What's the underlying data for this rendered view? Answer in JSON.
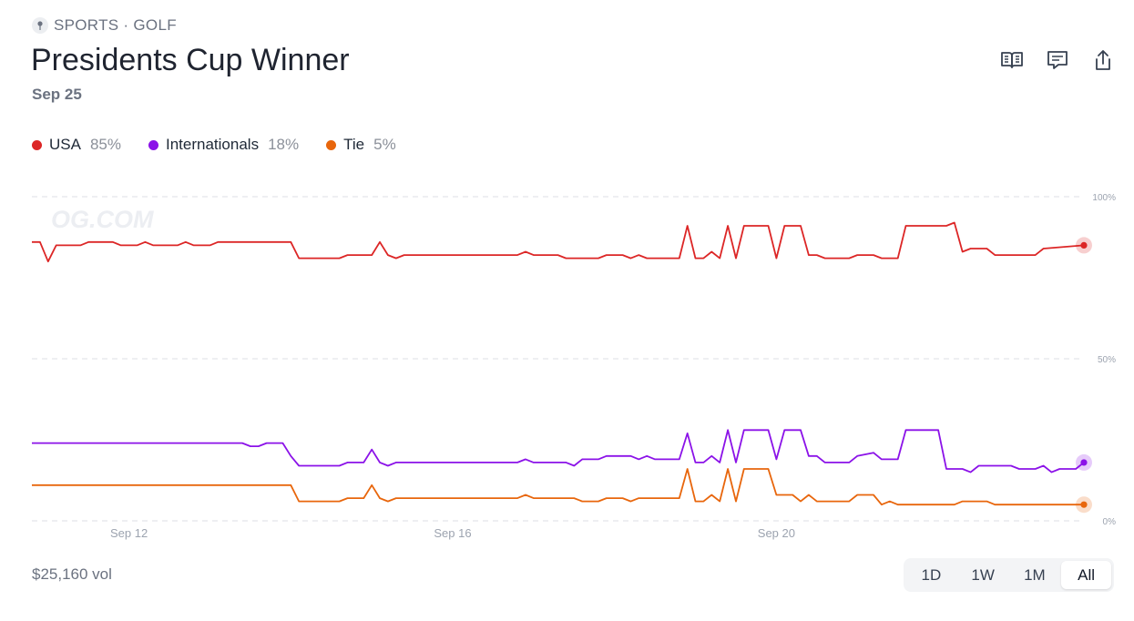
{
  "header": {
    "category": "SPORTS · GOLF",
    "title": "Presidents Cup Winner",
    "date": "Sep 25"
  },
  "actions": [
    {
      "icon": "book-icon"
    },
    {
      "icon": "comment-icon"
    },
    {
      "icon": "share-icon"
    }
  ],
  "legend": [
    {
      "name": "USA",
      "value": "85%",
      "color": "#dc2626"
    },
    {
      "name": "Internationals",
      "value": "18%",
      "color": "#8b12e8"
    },
    {
      "name": "Tie",
      "value": "5%",
      "color": "#e8660c"
    }
  ],
  "watermark": "OG.COM",
  "footer": {
    "volume": "$25,160 vol",
    "ranges": [
      "1D",
      "1W",
      "1M",
      "All"
    ],
    "active_range": "All"
  },
  "chart_data": {
    "type": "line",
    "x_ticks": [
      {
        "label": "Sep 12",
        "day": 12
      },
      {
        "label": "Sep 16",
        "day": 16
      },
      {
        "label": "Sep 20",
        "day": 20
      }
    ],
    "y_ticks": [
      {
        "label": "100%",
        "value": 100
      },
      {
        "label": "50%",
        "value": 50
      },
      {
        "label": "0%",
        "value": 0
      }
    ],
    "ylim": [
      0,
      100
    ],
    "xlim": [
      10.8,
      23.8
    ],
    "grid": true,
    "series": [
      {
        "name": "USA",
        "color": "#dc2626",
        "points": [
          [
            10.8,
            86
          ],
          [
            10.9,
            86
          ],
          [
            11.0,
            80
          ],
          [
            11.1,
            85
          ],
          [
            11.4,
            85
          ],
          [
            11.5,
            86
          ],
          [
            11.8,
            86
          ],
          [
            11.9,
            85
          ],
          [
            12.1,
            85
          ],
          [
            12.2,
            86
          ],
          [
            12.3,
            85
          ],
          [
            12.6,
            85
          ],
          [
            12.7,
            86
          ],
          [
            12.8,
            85
          ],
          [
            13.0,
            85
          ],
          [
            13.1,
            86
          ],
          [
            14.0,
            86
          ],
          [
            14.1,
            81
          ],
          [
            14.6,
            81
          ],
          [
            14.7,
            82
          ],
          [
            15.0,
            82
          ],
          [
            15.1,
            86
          ],
          [
            15.2,
            82
          ],
          [
            15.3,
            81
          ],
          [
            15.4,
            82
          ],
          [
            16.8,
            82
          ],
          [
            16.9,
            83
          ],
          [
            17.0,
            82
          ],
          [
            17.3,
            82
          ],
          [
            17.4,
            81
          ],
          [
            17.8,
            81
          ],
          [
            17.9,
            82
          ],
          [
            18.1,
            82
          ],
          [
            18.2,
            81
          ],
          [
            18.3,
            82
          ],
          [
            18.4,
            81
          ],
          [
            18.8,
            81
          ],
          [
            18.9,
            91
          ],
          [
            19.0,
            81
          ],
          [
            19.1,
            81
          ],
          [
            19.2,
            83
          ],
          [
            19.3,
            81
          ],
          [
            19.4,
            91
          ],
          [
            19.5,
            81
          ],
          [
            19.6,
            91
          ],
          [
            19.9,
            91
          ],
          [
            20.0,
            81
          ],
          [
            20.1,
            91
          ],
          [
            20.3,
            91
          ],
          [
            20.4,
            82
          ],
          [
            20.5,
            82
          ],
          [
            20.6,
            81
          ],
          [
            20.9,
            81
          ],
          [
            21.0,
            82
          ],
          [
            21.2,
            82
          ],
          [
            21.3,
            81
          ],
          [
            21.5,
            81
          ],
          [
            21.6,
            91
          ],
          [
            22.1,
            91
          ],
          [
            22.2,
            92
          ],
          [
            22.3,
            83
          ],
          [
            22.4,
            84
          ],
          [
            22.6,
            84
          ],
          [
            22.7,
            82
          ],
          [
            23.2,
            82
          ],
          [
            23.3,
            84
          ],
          [
            23.8,
            85
          ]
        ]
      },
      {
        "name": "Internationals",
        "color": "#8b12e8",
        "points": [
          [
            10.8,
            24
          ],
          [
            13.4,
            24
          ],
          [
            13.5,
            23
          ],
          [
            13.6,
            23
          ],
          [
            13.7,
            24
          ],
          [
            13.9,
            24
          ],
          [
            14.0,
            20
          ],
          [
            14.1,
            17
          ],
          [
            14.6,
            17
          ],
          [
            14.7,
            18
          ],
          [
            14.9,
            18
          ],
          [
            15.0,
            22
          ],
          [
            15.1,
            18
          ],
          [
            15.2,
            17
          ],
          [
            15.3,
            18
          ],
          [
            16.8,
            18
          ],
          [
            16.9,
            19
          ],
          [
            17.0,
            18
          ],
          [
            17.4,
            18
          ],
          [
            17.5,
            17
          ],
          [
            17.6,
            19
          ],
          [
            17.8,
            19
          ],
          [
            17.9,
            20
          ],
          [
            18.2,
            20
          ],
          [
            18.3,
            19
          ],
          [
            18.4,
            20
          ],
          [
            18.5,
            19
          ],
          [
            18.8,
            19
          ],
          [
            18.9,
            27
          ],
          [
            19.0,
            18
          ],
          [
            19.1,
            18
          ],
          [
            19.2,
            20
          ],
          [
            19.3,
            18
          ],
          [
            19.4,
            28
          ],
          [
            19.5,
            18
          ],
          [
            19.6,
            28
          ],
          [
            19.9,
            28
          ],
          [
            20.0,
            19
          ],
          [
            20.1,
            28
          ],
          [
            20.3,
            28
          ],
          [
            20.4,
            20
          ],
          [
            20.5,
            20
          ],
          [
            20.6,
            18
          ],
          [
            20.9,
            18
          ],
          [
            21.0,
            20
          ],
          [
            21.2,
            21
          ],
          [
            21.3,
            19
          ],
          [
            21.5,
            19
          ],
          [
            21.6,
            28
          ],
          [
            22.0,
            28
          ],
          [
            22.1,
            16
          ],
          [
            22.3,
            16
          ],
          [
            22.4,
            15
          ],
          [
            22.5,
            17
          ],
          [
            22.9,
            17
          ],
          [
            23.0,
            16
          ],
          [
            23.2,
            16
          ],
          [
            23.3,
            17
          ],
          [
            23.4,
            15
          ],
          [
            23.5,
            16
          ],
          [
            23.7,
            16
          ],
          [
            23.8,
            18
          ]
        ]
      },
      {
        "name": "Tie",
        "color": "#e8660c",
        "points": [
          [
            10.8,
            11
          ],
          [
            14.0,
            11
          ],
          [
            14.1,
            6
          ],
          [
            14.6,
            6
          ],
          [
            14.7,
            7
          ],
          [
            14.9,
            7
          ],
          [
            15.0,
            11
          ],
          [
            15.1,
            7
          ],
          [
            15.2,
            6
          ],
          [
            15.3,
            7
          ],
          [
            16.8,
            7
          ],
          [
            16.9,
            8
          ],
          [
            17.0,
            7
          ],
          [
            17.5,
            7
          ],
          [
            17.6,
            6
          ],
          [
            17.8,
            6
          ],
          [
            17.9,
            7
          ],
          [
            18.1,
            7
          ],
          [
            18.2,
            6
          ],
          [
            18.3,
            7
          ],
          [
            18.8,
            7
          ],
          [
            18.9,
            16
          ],
          [
            19.0,
            6
          ],
          [
            19.1,
            6
          ],
          [
            19.2,
            8
          ],
          [
            19.3,
            6
          ],
          [
            19.4,
            16
          ],
          [
            19.5,
            6
          ],
          [
            19.6,
            16
          ],
          [
            19.9,
            16
          ],
          [
            20.0,
            8
          ],
          [
            20.2,
            8
          ],
          [
            20.3,
            6
          ],
          [
            20.4,
            8
          ],
          [
            20.5,
            6
          ],
          [
            20.9,
            6
          ],
          [
            21.0,
            8
          ],
          [
            21.2,
            8
          ],
          [
            21.3,
            5
          ],
          [
            21.4,
            6
          ],
          [
            21.5,
            5
          ],
          [
            22.2,
            5
          ],
          [
            22.3,
            6
          ],
          [
            22.6,
            6
          ],
          [
            22.7,
            5
          ],
          [
            23.8,
            5
          ]
        ]
      }
    ]
  }
}
